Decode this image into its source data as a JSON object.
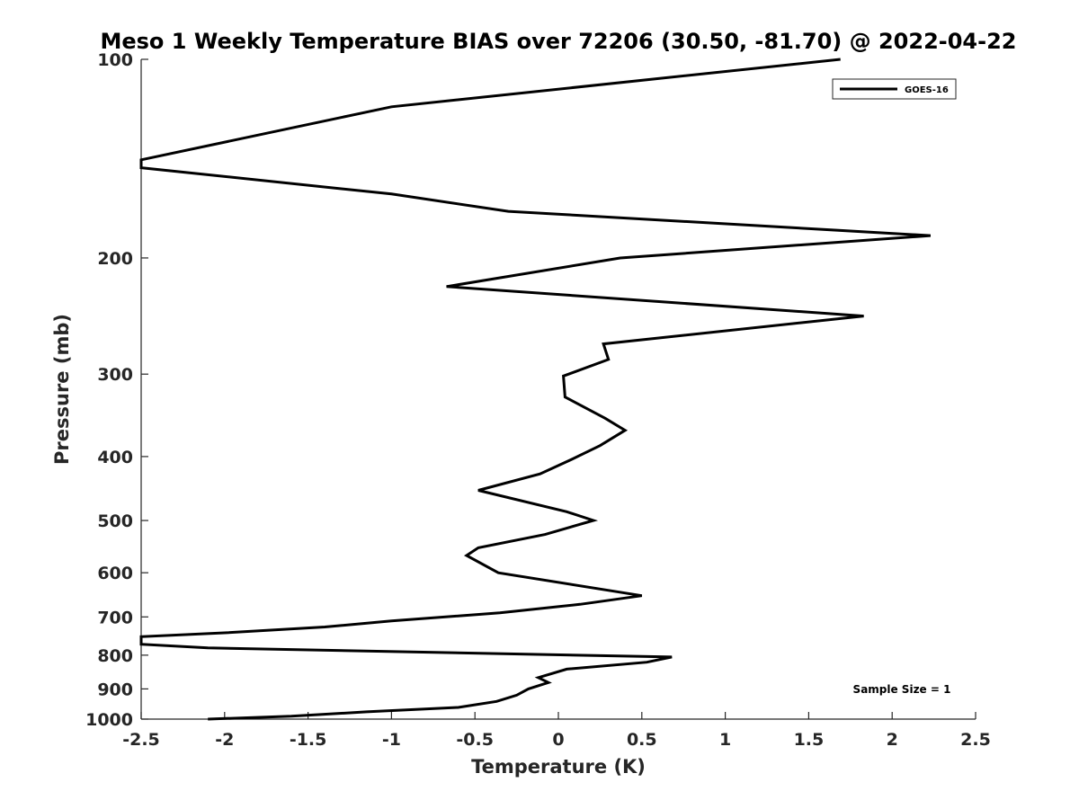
{
  "chart_data": {
    "type": "line",
    "title": "Meso 1 Weekly Temperature BIAS over 72206 (30.50, -81.70) @ 2022-04-22",
    "xlabel": "Temperature (K)",
    "ylabel": "Pressure (mb)",
    "xlim": [
      -2.5,
      2.5
    ],
    "ylim": [
      100,
      1000
    ],
    "yscale": "log",
    "yaxis_reversed": true,
    "xticks": [
      -2.5,
      -2,
      -1.5,
      -1,
      -0.5,
      0,
      0.5,
      1,
      1.5,
      2,
      2.5
    ],
    "xtick_labels": [
      "-2.5",
      "-2",
      "-1.5",
      "-1",
      "-0.5",
      "0",
      "0.5",
      "1",
      "1.5",
      "2",
      "2.5"
    ],
    "yticks": [
      100,
      200,
      300,
      400,
      500,
      600,
      700,
      800,
      900,
      1000
    ],
    "ytick_labels": [
      "100",
      "200",
      "300",
      "400",
      "500",
      "600",
      "700",
      "800",
      "900",
      "1000"
    ],
    "grid": false,
    "legend": "top-right",
    "annotation": "Sample Size = 1",
    "series": [
      {
        "name": "GOES-16",
        "color": "#000000",
        "points": [
          {
            "x": 1.69,
            "p": 100
          },
          {
            "x": -1.0,
            "p": 118
          },
          {
            "x": -2.5,
            "p": 142
          },
          {
            "x": -2.5,
            "p": 146
          },
          {
            "x": -1.0,
            "p": 160
          },
          {
            "x": -0.3,
            "p": 170
          },
          {
            "x": 2.23,
            "p": 185
          },
          {
            "x": 0.37,
            "p": 200
          },
          {
            "x": -0.67,
            "p": 221
          },
          {
            "x": 1.83,
            "p": 245
          },
          {
            "x": 0.27,
            "p": 270
          },
          {
            "x": 0.3,
            "p": 285
          },
          {
            "x": 0.03,
            "p": 302
          },
          {
            "x": 0.04,
            "p": 325
          },
          {
            "x": 0.28,
            "p": 350
          },
          {
            "x": 0.4,
            "p": 365
          },
          {
            "x": 0.25,
            "p": 385
          },
          {
            "x": 0.07,
            "p": 405
          },
          {
            "x": -0.11,
            "p": 425
          },
          {
            "x": -0.48,
            "p": 450
          },
          {
            "x": 0.05,
            "p": 485
          },
          {
            "x": 0.21,
            "p": 500
          },
          {
            "x": -0.08,
            "p": 525
          },
          {
            "x": -0.48,
            "p": 550
          },
          {
            "x": -0.55,
            "p": 565
          },
          {
            "x": -0.36,
            "p": 600
          },
          {
            "x": 0.5,
            "p": 650
          },
          {
            "x": 0.13,
            "p": 670
          },
          {
            "x": -0.35,
            "p": 690
          },
          {
            "x": -1.0,
            "p": 710
          },
          {
            "x": -1.4,
            "p": 725
          },
          {
            "x": -2.0,
            "p": 740
          },
          {
            "x": -2.5,
            "p": 750
          },
          {
            "x": -2.5,
            "p": 770
          },
          {
            "x": -2.1,
            "p": 780
          },
          {
            "x": 0.68,
            "p": 805
          },
          {
            "x": 0.53,
            "p": 820
          },
          {
            "x": 0.05,
            "p": 840
          },
          {
            "x": -0.12,
            "p": 865
          },
          {
            "x": -0.06,
            "p": 880
          },
          {
            "x": -0.18,
            "p": 900
          },
          {
            "x": -0.25,
            "p": 920
          },
          {
            "x": -0.37,
            "p": 940
          },
          {
            "x": -0.6,
            "p": 960
          },
          {
            "x": -1.15,
            "p": 975
          },
          {
            "x": -1.6,
            "p": 990
          },
          {
            "x": -2.1,
            "p": 1000
          }
        ]
      }
    ]
  }
}
